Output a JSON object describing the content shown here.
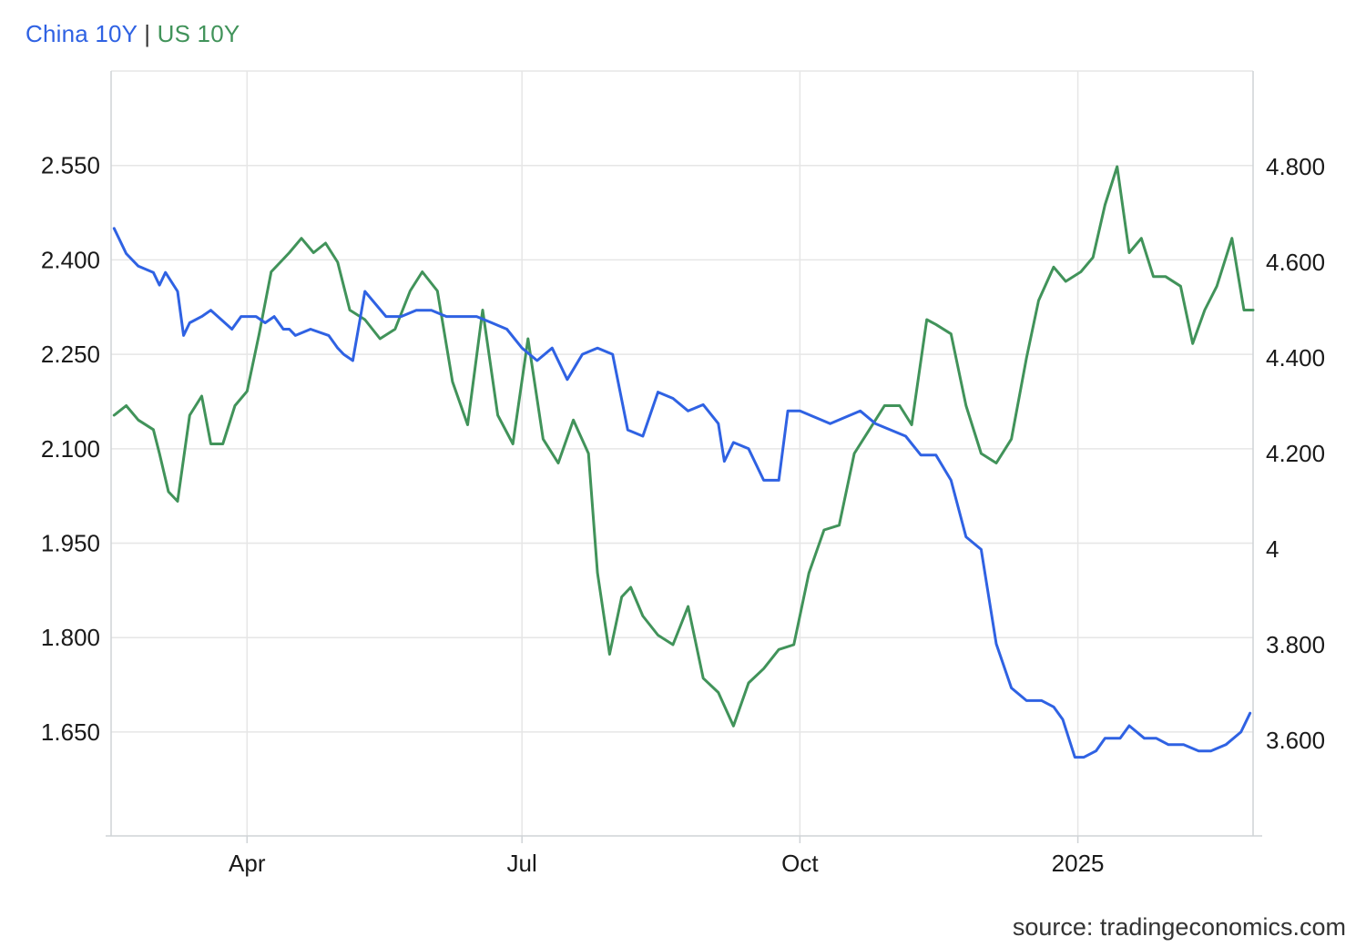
{
  "legend": {
    "series1": "China 10Y",
    "separator": "|",
    "series2": "US 10Y"
  },
  "source": "source: tradingeconomics.com",
  "colors": {
    "china": "#2f62e3",
    "us": "#41935a",
    "grid": "#e6e6e6",
    "axis": "#cfd3d6"
  },
  "chart_data": {
    "type": "line",
    "x_unit": "date",
    "xlim": [
      "2024-02-16",
      "2025-02-28"
    ],
    "x_ticks": [
      {
        "date": "2024-04-01",
        "label": "Apr"
      },
      {
        "date": "2024-07-01",
        "label": "Jul"
      },
      {
        "date": "2024-10-01",
        "label": "Oct"
      },
      {
        "date": "2025-01-01",
        "label": "2025"
      }
    ],
    "y_left": {
      "ylim": [
        1.485,
        2.7
      ],
      "ticks": [
        1.65,
        1.8,
        1.95,
        2.1,
        2.25,
        2.4,
        2.55
      ],
      "tick_labels": [
        "1.650",
        "1.800",
        "1.950",
        "2.100",
        "2.250",
        "2.400",
        "2.550"
      ]
    },
    "y_right": {
      "ylim": [
        3.4,
        5.0
      ],
      "ticks": [
        3.6,
        3.8,
        4.0,
        4.2,
        4.4,
        4.6,
        4.8
      ],
      "tick_labels": [
        "3.600",
        "3.800",
        "4",
        "4.200",
        "4.400",
        "4.600",
        "4.800"
      ]
    },
    "grid": true,
    "legend_position": "top-left",
    "series": [
      {
        "name": "China 10Y",
        "axis": "left",
        "x": [
          "2024-02-17",
          "2024-02-21",
          "2024-02-25",
          "2024-03-01",
          "2024-03-03",
          "2024-03-05",
          "2024-03-09",
          "2024-03-11",
          "2024-03-13",
          "2024-03-17",
          "2024-03-20",
          "2024-03-27",
          "2024-03-30",
          "2024-04-04",
          "2024-04-07",
          "2024-04-10",
          "2024-04-13",
          "2024-04-15",
          "2024-04-17",
          "2024-04-22",
          "2024-04-28",
          "2024-05-01",
          "2024-05-03",
          "2024-05-06",
          "2024-05-10",
          "2024-05-17",
          "2024-05-22",
          "2024-05-27",
          "2024-06-01",
          "2024-06-06",
          "2024-06-11",
          "2024-06-16",
          "2024-06-21",
          "2024-06-26",
          "2024-07-01",
          "2024-07-06",
          "2024-07-11",
          "2024-07-16",
          "2024-07-21",
          "2024-07-26",
          "2024-07-31",
          "2024-08-05",
          "2024-08-10",
          "2024-08-15",
          "2024-08-20",
          "2024-08-25",
          "2024-08-30",
          "2024-09-04",
          "2024-09-06",
          "2024-09-09",
          "2024-09-14",
          "2024-09-19",
          "2024-09-24",
          "2024-09-27",
          "2024-10-01",
          "2024-10-06",
          "2024-10-11",
          "2024-10-16",
          "2024-10-21",
          "2024-10-26",
          "2024-10-31",
          "2024-11-05",
          "2024-11-10",
          "2024-11-15",
          "2024-11-20",
          "2024-11-25",
          "2024-11-30",
          "2024-12-05",
          "2024-12-10",
          "2024-12-15",
          "2024-12-20",
          "2024-12-24",
          "2024-12-27",
          "2024-12-31",
          "2025-01-03",
          "2025-01-07",
          "2025-01-10",
          "2025-01-15",
          "2025-01-18",
          "2025-01-23",
          "2025-01-27",
          "2025-01-31",
          "2025-02-05",
          "2025-02-10",
          "2025-02-14",
          "2025-02-19",
          "2025-02-24",
          "2025-02-27"
        ],
        "values": [
          2.45,
          2.41,
          2.39,
          2.38,
          2.36,
          2.38,
          2.35,
          2.28,
          2.3,
          2.31,
          2.32,
          2.29,
          2.31,
          2.31,
          2.3,
          2.31,
          2.29,
          2.29,
          2.28,
          2.29,
          2.28,
          2.26,
          2.25,
          2.24,
          2.35,
          2.31,
          2.31,
          2.32,
          2.32,
          2.31,
          2.31,
          2.31,
          2.3,
          2.29,
          2.26,
          2.24,
          2.26,
          2.21,
          2.25,
          2.26,
          2.25,
          2.13,
          2.12,
          2.19,
          2.18,
          2.16,
          2.17,
          2.14,
          2.08,
          2.11,
          2.1,
          2.05,
          2.05,
          2.16,
          2.16,
          2.15,
          2.14,
          2.15,
          2.16,
          2.14,
          2.13,
          2.12,
          2.09,
          2.09,
          2.05,
          1.96,
          1.94,
          1.79,
          1.72,
          1.7,
          1.7,
          1.69,
          1.67,
          1.61,
          1.61,
          1.62,
          1.64,
          1.64,
          1.66,
          1.64,
          1.64,
          1.63,
          1.63,
          1.62,
          1.62,
          1.63,
          1.65,
          1.68
        ]
      },
      {
        "name": "US 10Y",
        "axis": "right",
        "x": [
          "2024-02-17",
          "2024-02-21",
          "2024-02-25",
          "2024-03-01",
          "2024-03-03",
          "2024-03-06",
          "2024-03-09",
          "2024-03-13",
          "2024-03-17",
          "2024-03-20",
          "2024-03-24",
          "2024-03-28",
          "2024-04-01",
          "2024-04-05",
          "2024-04-09",
          "2024-04-12",
          "2024-04-15",
          "2024-04-19",
          "2024-04-23",
          "2024-04-27",
          "2024-05-01",
          "2024-05-05",
          "2024-05-10",
          "2024-05-15",
          "2024-05-20",
          "2024-05-25",
          "2024-05-29",
          "2024-06-03",
          "2024-06-08",
          "2024-06-13",
          "2024-06-18",
          "2024-06-23",
          "2024-06-28",
          "2024-07-03",
          "2024-07-08",
          "2024-07-13",
          "2024-07-18",
          "2024-07-23",
          "2024-07-26",
          "2024-07-30",
          "2024-08-03",
          "2024-08-06",
          "2024-08-10",
          "2024-08-15",
          "2024-08-20",
          "2024-08-25",
          "2024-08-30",
          "2024-09-04",
          "2024-09-09",
          "2024-09-14",
          "2024-09-19",
          "2024-09-24",
          "2024-09-29",
          "2024-10-04",
          "2024-10-09",
          "2024-10-14",
          "2024-10-19",
          "2024-10-24",
          "2024-10-29",
          "2024-11-03",
          "2024-11-07",
          "2024-11-12",
          "2024-11-15",
          "2024-11-20",
          "2024-11-25",
          "2024-11-30",
          "2024-12-05",
          "2024-12-10",
          "2024-12-15",
          "2024-12-19",
          "2024-12-24",
          "2024-12-28",
          "2025-01-02",
          "2025-01-06",
          "2025-01-10",
          "2025-01-14",
          "2025-01-18",
          "2025-01-22",
          "2025-01-26",
          "2025-01-30",
          "2025-02-04",
          "2025-02-08",
          "2025-02-12",
          "2025-02-16",
          "2025-02-21",
          "2025-02-25",
          "2025-02-28"
        ],
        "values": [
          4.28,
          4.3,
          4.27,
          4.25,
          4.2,
          4.12,
          4.1,
          4.28,
          4.32,
          4.22,
          4.22,
          4.3,
          4.33,
          4.45,
          4.58,
          4.6,
          4.62,
          4.65,
          4.62,
          4.64,
          4.6,
          4.5,
          4.48,
          4.44,
          4.46,
          4.54,
          4.58,
          4.54,
          4.35,
          4.26,
          4.5,
          4.28,
          4.22,
          4.44,
          4.23,
          4.18,
          4.27,
          4.2,
          3.95,
          3.78,
          3.9,
          3.92,
          3.86,
          3.82,
          3.8,
          3.88,
          3.73,
          3.7,
          3.63,
          3.72,
          3.75,
          3.79,
          3.8,
          3.95,
          4.04,
          4.05,
          4.2,
          4.25,
          4.3,
          4.3,
          4.26,
          4.48,
          4.47,
          4.45,
          4.3,
          4.2,
          4.18,
          4.23,
          4.4,
          4.52,
          4.59,
          4.56,
          4.58,
          4.61,
          4.72,
          4.8,
          4.62,
          4.65,
          4.57,
          4.57,
          4.55,
          4.43,
          4.5,
          4.55,
          4.65,
          4.5,
          4.5
        ]
      }
    ]
  }
}
